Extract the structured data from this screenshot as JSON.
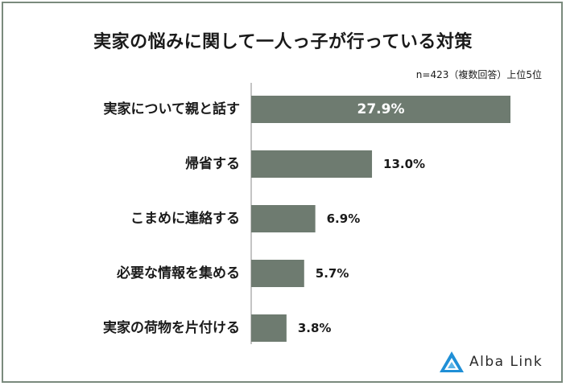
{
  "chart_data": {
    "type": "bar",
    "orientation": "horizontal",
    "title": "実家の悩みに関して一人っ子が行っている対策",
    "note": "n=423（複数回答）上位5位",
    "categories": [
      "実家について親と話す",
      "帰省する",
      "こまめに連絡する",
      "必要な情報を集める",
      "実家の荷物を片付ける"
    ],
    "values": [
      27.9,
      13.0,
      6.9,
      5.7,
      3.8
    ],
    "labels": [
      "27.9%",
      "13.0%",
      "6.9%",
      "5.7%",
      "3.8%"
    ],
    "bar_color": "#6e7b70",
    "axis_color": "#8a8a8a",
    "grid": false,
    "legend": "none"
  },
  "logo": {
    "text": "Alba Link",
    "icon": "alba-link-triangle-icon",
    "color": "#1f8fd6"
  }
}
